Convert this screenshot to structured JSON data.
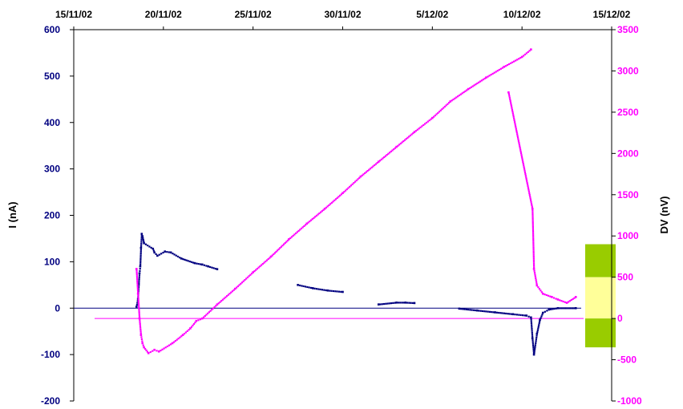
{
  "chart_data": {
    "type": "scatter",
    "title": "",
    "x_axis": {
      "position": "top",
      "label": "",
      "ticks": [
        "15/11/02",
        "20/11/02",
        "25/11/02",
        "30/11/02",
        "5/12/02",
        "10/12/02",
        "15/12/02"
      ],
      "range": [
        "2002-11-15",
        "2002-12-15"
      ]
    },
    "y_left": {
      "label": "I (nA)",
      "ticks": [
        "600",
        "500",
        "400",
        "300",
        "200",
        "100",
        "0",
        "-100",
        "-200"
      ],
      "range": [
        -200,
        600
      ],
      "color": "#000080"
    },
    "y_right": {
      "label": "DV (nV)",
      "ticks": [
        "3500",
        "3000",
        "2500",
        "2000",
        "1500",
        "1000",
        "500",
        "0",
        "-500",
        "-1000"
      ],
      "range": [
        -1000,
        3500
      ],
      "color": "#ff00ff"
    },
    "reference_lines": [
      {
        "axis": "left",
        "value": 0,
        "color": "#000080"
      },
      {
        "axis": "right",
        "value": 0,
        "color": "#ff00ff"
      }
    ],
    "bands": [
      {
        "axis": "right",
        "from": 500,
        "to": 900,
        "color": "#99cc00"
      },
      {
        "axis": "right",
        "from": 0,
        "to": 500,
        "color": "#ffff99"
      },
      {
        "axis": "right",
        "from": -350,
        "to": 0,
        "color": "#99cc00"
      }
    ],
    "series": [
      {
        "axis": "left",
        "color": "#000080",
        "points": [
          {
            "x": "2002-11-18 12:00",
            "y": 3
          },
          {
            "x": "2002-11-18 14:00",
            "y": 20
          },
          {
            "x": "2002-11-18 15:00",
            "y": 50
          },
          {
            "x": "2002-11-18 16:00",
            "y": 75
          },
          {
            "x": "2002-11-18 17:00",
            "y": 90
          },
          {
            "x": "2002-11-18 18:00",
            "y": 130
          },
          {
            "x": "2002-11-18 19:00",
            "y": 160
          },
          {
            "x": "2002-11-18 20:00",
            "y": 155
          },
          {
            "x": "2002-11-18 22:00",
            "y": 140
          },
          {
            "x": "2002-11-19 10:00",
            "y": 128
          },
          {
            "x": "2002-11-19 12:00",
            "y": 120
          },
          {
            "x": "2002-11-19 16:00",
            "y": 113
          },
          {
            "x": "2002-11-20 02:00",
            "y": 122
          },
          {
            "x": "2002-11-20 10:00",
            "y": 120
          },
          {
            "x": "2002-11-21 00:00",
            "y": 107
          },
          {
            "x": "2002-11-21 18:00",
            "y": 97
          },
          {
            "x": "2002-11-22 04:00",
            "y": 94
          },
          {
            "x": "2002-11-22 12:00",
            "y": 90
          },
          {
            "x": "2002-11-23 00:00",
            "y": 84
          },
          {
            "x": "2002-11-27 12:00",
            "y": 50
          },
          {
            "x": "2002-11-28 08:00",
            "y": 43
          },
          {
            "x": "2002-11-29 04:00",
            "y": 38
          },
          {
            "x": "2002-11-30 00:00",
            "y": 35
          },
          {
            "x": "2002-12-02 00:00",
            "y": 8
          },
          {
            "x": "2002-12-03 00:00",
            "y": 12
          },
          {
            "x": "2002-12-03 12:00",
            "y": 12
          },
          {
            "x": "2002-12-04 00:00",
            "y": 11
          },
          {
            "x": "2002-12-06 12:00",
            "y": -1
          },
          {
            "x": "2002-12-07 12:00",
            "y": -5
          },
          {
            "x": "2002-12-08 12:00",
            "y": -9
          },
          {
            "x": "2002-12-09 12:00",
            "y": -13
          },
          {
            "x": "2002-12-10 06:00",
            "y": -16
          },
          {
            "x": "2002-12-10 12:00",
            "y": -20
          },
          {
            "x": "2002-12-10 14:00",
            "y": -65
          },
          {
            "x": "2002-12-10 16:00",
            "y": -100
          },
          {
            "x": "2002-12-10 20:00",
            "y": -55
          },
          {
            "x": "2002-12-11 00:00",
            "y": -25
          },
          {
            "x": "2002-12-11 04:00",
            "y": -10
          },
          {
            "x": "2002-12-11 12:00",
            "y": -3
          },
          {
            "x": "2002-12-12 00:00",
            "y": 0
          },
          {
            "x": "2002-12-13 00:00",
            "y": 0
          }
        ]
      },
      {
        "axis": "right",
        "color": "#ff00ff",
        "points": [
          {
            "x": "2002-11-18 12:00",
            "y": 600
          },
          {
            "x": "2002-11-18 14:00",
            "y": 300
          },
          {
            "x": "2002-11-18 16:00",
            "y": 0
          },
          {
            "x": "2002-11-18 18:00",
            "y": -200
          },
          {
            "x": "2002-11-18 20:00",
            "y": -300
          },
          {
            "x": "2002-11-18 22:00",
            "y": -350
          },
          {
            "x": "2002-11-19 04:00",
            "y": -420
          },
          {
            "x": "2002-11-19 12:00",
            "y": -380
          },
          {
            "x": "2002-11-19 18:00",
            "y": -400
          },
          {
            "x": "2002-11-20 12:00",
            "y": -300
          },
          {
            "x": "2002-11-21 02:00",
            "y": -200
          },
          {
            "x": "2002-11-21 12:00",
            "y": -120
          },
          {
            "x": "2002-11-21 20:00",
            "y": -30
          },
          {
            "x": "2002-11-22 04:00",
            "y": 0
          },
          {
            "x": "2002-11-23 00:00",
            "y": 170
          },
          {
            "x": "2002-11-24 00:00",
            "y": 360
          },
          {
            "x": "2002-11-25 00:00",
            "y": 560
          },
          {
            "x": "2002-11-26 00:00",
            "y": 750
          },
          {
            "x": "2002-11-27 00:00",
            "y": 960
          },
          {
            "x": "2002-11-28 00:00",
            "y": 1150
          },
          {
            "x": "2002-11-29 00:00",
            "y": 1330
          },
          {
            "x": "2002-11-30 00:00",
            "y": 1520
          },
          {
            "x": "2002-12-01 00:00",
            "y": 1720
          },
          {
            "x": "2002-12-02 00:00",
            "y": 1900
          },
          {
            "x": "2002-12-03 00:00",
            "y": 2080
          },
          {
            "x": "2002-12-04 00:00",
            "y": 2260
          },
          {
            "x": "2002-12-05 00:00",
            "y": 2430
          },
          {
            "x": "2002-12-06 00:00",
            "y": 2630
          },
          {
            "x": "2002-12-07 00:00",
            "y": 2780
          },
          {
            "x": "2002-12-08 00:00",
            "y": 2920
          },
          {
            "x": "2002-12-09 00:00",
            "y": 3050
          },
          {
            "x": "2002-12-10 00:00",
            "y": 3170
          },
          {
            "x": "2002-12-10 12:00",
            "y": 3260
          },
          {
            "x": "2002-12-09 06:00",
            "y": 2740
          },
          {
            "x": "2002-12-10 14:00",
            "y": 1330
          },
          {
            "x": "2002-12-10 16:00",
            "y": 600
          },
          {
            "x": "2002-12-10 20:00",
            "y": 400
          },
          {
            "x": "2002-12-11 04:00",
            "y": 300
          },
          {
            "x": "2002-12-11 16:00",
            "y": 260
          },
          {
            "x": "2002-12-12 00:00",
            "y": 230
          },
          {
            "x": "2002-12-12 12:00",
            "y": 190
          },
          {
            "x": "2002-12-13 00:00",
            "y": 260
          }
        ]
      }
    ]
  }
}
